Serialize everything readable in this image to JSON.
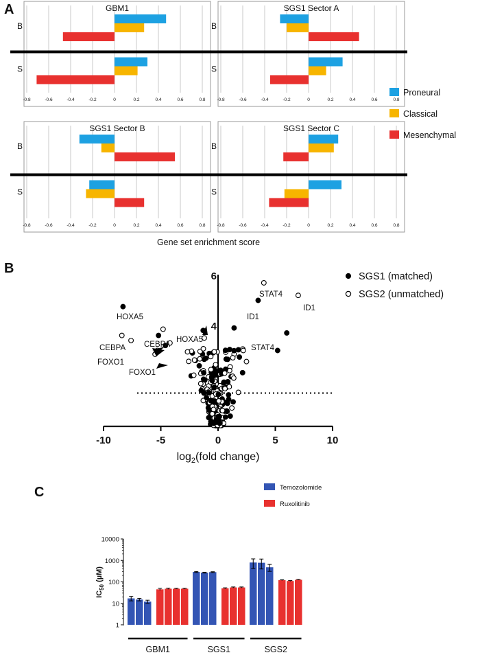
{
  "panel_labels": {
    "a": "A",
    "b": "B",
    "c": "C"
  },
  "colors": {
    "proneural": "#1DA1E2",
    "classical": "#F7B500",
    "mesenchymal": "#E8312F",
    "temozolomide": "#3355B4",
    "ruxolitinib": "#E8312F"
  },
  "chart_data": [
    {
      "type": "bar",
      "orientation": "horizontal",
      "panel": "A",
      "xlabel": "Gene set enrichment score",
      "xlim": [
        -0.8,
        0.8
      ],
      "xticks": [
        "-0.8",
        "-0.6",
        "-0.4",
        "-0.2",
        "0",
        "0.2",
        "0.4",
        "0.6",
        "0.8"
      ],
      "legend": [
        "Proneural",
        "Classical",
        "Mesenchymal"
      ],
      "groups": [
        "B",
        "S"
      ],
      "subplots": [
        {
          "title": "GBM1",
          "B": [
            0.47,
            0.27,
            -0.47
          ],
          "S": [
            0.3,
            0.21,
            -0.71
          ]
        },
        {
          "title": "SGS1 Sector A",
          "B": [
            -0.26,
            -0.2,
            0.46
          ],
          "S": [
            0.31,
            0.16,
            -0.35
          ]
        },
        {
          "title": "SGS1 Sector B",
          "B": [
            -0.32,
            -0.12,
            0.55
          ],
          "S": [
            -0.23,
            -0.26,
            0.27
          ]
        },
        {
          "title": "SGS1 Sector C",
          "B": [
            0.27,
            0.23,
            -0.23
          ],
          "S": [
            0.3,
            -0.22,
            -0.36
          ]
        }
      ]
    },
    {
      "type": "scatter",
      "panel": "B",
      "xlabel_main": "log",
      "xlabel_sub": "2",
      "xlabel_rest": "(fold change)",
      "xlim": [
        -10,
        10
      ],
      "ylim": [
        0,
        6
      ],
      "xticks": [
        "-10",
        "-5",
        "0",
        "5",
        "10"
      ],
      "yticks": [
        "4",
        "6"
      ],
      "threshold_y": 1.3,
      "legend": [
        "SGS1 (matched)",
        "SGS2 (unmatched)"
      ],
      "annotations": [
        "HOXA5",
        "CEBPA",
        "CEBPA",
        "FOXO1",
        "FOXO1",
        "HOXA5",
        "STAT4",
        "ID1",
        "ID1",
        "STAT4"
      ],
      "labeled_points": {
        "filled": [
          [
            -8.3,
            4.75
          ],
          [
            -5.2,
            3.6
          ],
          [
            -4.6,
            3.2
          ],
          [
            -1.3,
            3.8
          ],
          [
            1.4,
            3.9
          ],
          [
            3.5,
            5.0
          ],
          [
            6.0,
            3.7
          ],
          [
            5.2,
            3.0
          ]
        ],
        "open": [
          [
            -8.4,
            3.6
          ],
          [
            -7.6,
            3.4
          ],
          [
            -4.8,
            3.85
          ],
          [
            -4.2,
            3.3
          ],
          [
            -5.3,
            3.0
          ],
          [
            -5.5,
            2.85
          ],
          [
            -1.2,
            3.5
          ],
          [
            4.0,
            5.7
          ],
          [
            7.0,
            5.2
          ],
          [
            2.2,
            3.0
          ]
        ]
      }
    },
    {
      "type": "bar",
      "panel": "C",
      "ylabel": "IC",
      "ylabel_sub": "50",
      "ylabel_unit": " (µM)",
      "yscale": "log",
      "ylim": [
        1,
        10000
      ],
      "yticks": [
        "1",
        "10",
        "100",
        "1000",
        "10000"
      ],
      "legend": [
        "Temozolomide",
        "Ruxolitinib"
      ],
      "groups": [
        {
          "name": "GBM1",
          "temozolomide": [
            17,
            15,
            12
          ],
          "temozolomide_err": [
            4,
            2,
            2
          ],
          "ruxolitinib": [
            45,
            48,
            48,
            48
          ],
          "ruxolitinib_err": [
            5,
            3,
            2,
            2
          ]
        },
        {
          "name": "SGS1",
          "temozolomide": [
            290,
            270,
            285
          ],
          "temozolomide_err": [
            15,
            12,
            12
          ],
          "ruxolitinib": [
            50,
            55,
            55
          ],
          "ruxolitinib_err": [
            3,
            3,
            3
          ]
        },
        {
          "name": "SGS2",
          "temozolomide": [
            800,
            780,
            480
          ],
          "temozolomide_err": [
            380,
            380,
            170
          ],
          "ruxolitinib": [
            120,
            110,
            125
          ],
          "ruxolitinib_err": [
            6,
            5,
            5
          ]
        }
      ]
    }
  ]
}
